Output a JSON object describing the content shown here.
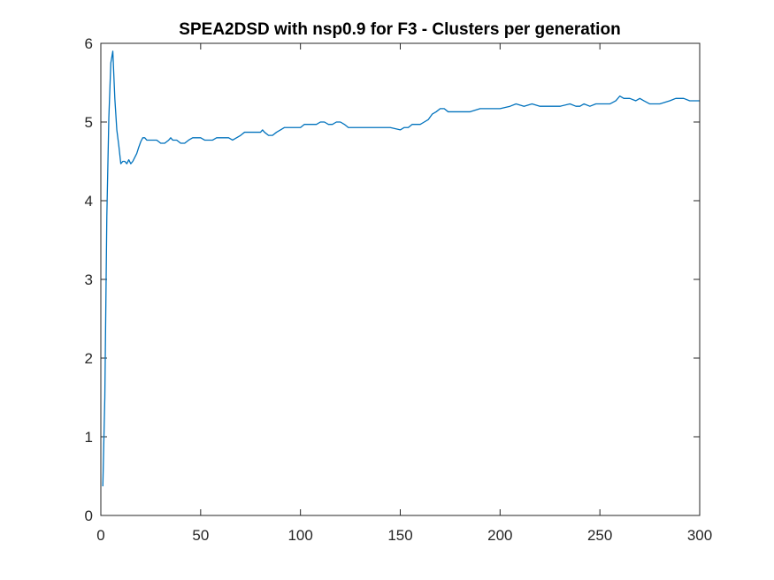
{
  "chart_data": {
    "type": "line",
    "title": "SPEA2DSD with nsp0.9 for F3 - Clusters per generation",
    "xlabel": "",
    "ylabel": "",
    "xlim": [
      0,
      300
    ],
    "ylim": [
      0,
      6
    ],
    "xticks": [
      0,
      50,
      100,
      150,
      200,
      250,
      300
    ],
    "yticks": [
      0,
      1,
      2,
      3,
      4,
      5,
      6
    ],
    "grid": false,
    "line_color": "#0072BD",
    "axis_color": "#262626",
    "series": [
      {
        "x": [
          1,
          2,
          3,
          4,
          5,
          6,
          7,
          8,
          9,
          10,
          11,
          12,
          13,
          14,
          15,
          16,
          17,
          18,
          19,
          20,
          21,
          22,
          23,
          24,
          25,
          26,
          28,
          30,
          32,
          34,
          35,
          36,
          38,
          40,
          42,
          44,
          46,
          48,
          50,
          52,
          54,
          56,
          58,
          60,
          62,
          64,
          66,
          68,
          70,
          72,
          74,
          76,
          78,
          80,
          81,
          82,
          84,
          86,
          88,
          90,
          92,
          94,
          96,
          98,
          100,
          102,
          104,
          106,
          108,
          110,
          112,
          114,
          116,
          118,
          120,
          122,
          124,
          126,
          128,
          130,
          135,
          140,
          145,
          150,
          152,
          154,
          156,
          158,
          160,
          162,
          164,
          166,
          168,
          170,
          172,
          174,
          176,
          180,
          185,
          190,
          195,
          200,
          205,
          208,
          212,
          216,
          220,
          225,
          230,
          235,
          238,
          240,
          242,
          245,
          248,
          250,
          255,
          258,
          260,
          262,
          265,
          268,
          270,
          272,
          275,
          280,
          285,
          288,
          292,
          295,
          300
        ],
        "y": [
          0.37,
          1.5,
          3.8,
          5.05,
          5.75,
          5.9,
          5.3,
          4.9,
          4.7,
          4.47,
          4.5,
          4.5,
          4.47,
          4.52,
          4.47,
          4.5,
          4.55,
          4.6,
          4.68,
          4.75,
          4.8,
          4.8,
          4.77,
          4.77,
          4.77,
          4.77,
          4.77,
          4.73,
          4.73,
          4.77,
          4.8,
          4.77,
          4.77,
          4.73,
          4.73,
          4.77,
          4.8,
          4.8,
          4.8,
          4.77,
          4.77,
          4.77,
          4.8,
          4.8,
          4.8,
          4.8,
          4.77,
          4.8,
          4.83,
          4.87,
          4.87,
          4.87,
          4.87,
          4.87,
          4.9,
          4.87,
          4.83,
          4.83,
          4.87,
          4.9,
          4.93,
          4.93,
          4.93,
          4.93,
          4.93,
          4.97,
          4.97,
          4.97,
          4.97,
          5.0,
          5.0,
          4.97,
          4.97,
          5.0,
          5.0,
          4.97,
          4.93,
          4.93,
          4.93,
          4.93,
          4.93,
          4.93,
          4.93,
          4.9,
          4.93,
          4.93,
          4.97,
          4.97,
          4.97,
          5.0,
          5.03,
          5.1,
          5.13,
          5.17,
          5.17,
          5.13,
          5.13,
          5.13,
          5.13,
          5.17,
          5.17,
          5.17,
          5.2,
          5.23,
          5.2,
          5.23,
          5.2,
          5.2,
          5.2,
          5.23,
          5.2,
          5.2,
          5.23,
          5.2,
          5.23,
          5.23,
          5.23,
          5.27,
          5.33,
          5.3,
          5.3,
          5.27,
          5.3,
          5.27,
          5.23,
          5.23,
          5.27,
          5.3,
          5.3,
          5.27,
          5.27
        ]
      }
    ]
  }
}
